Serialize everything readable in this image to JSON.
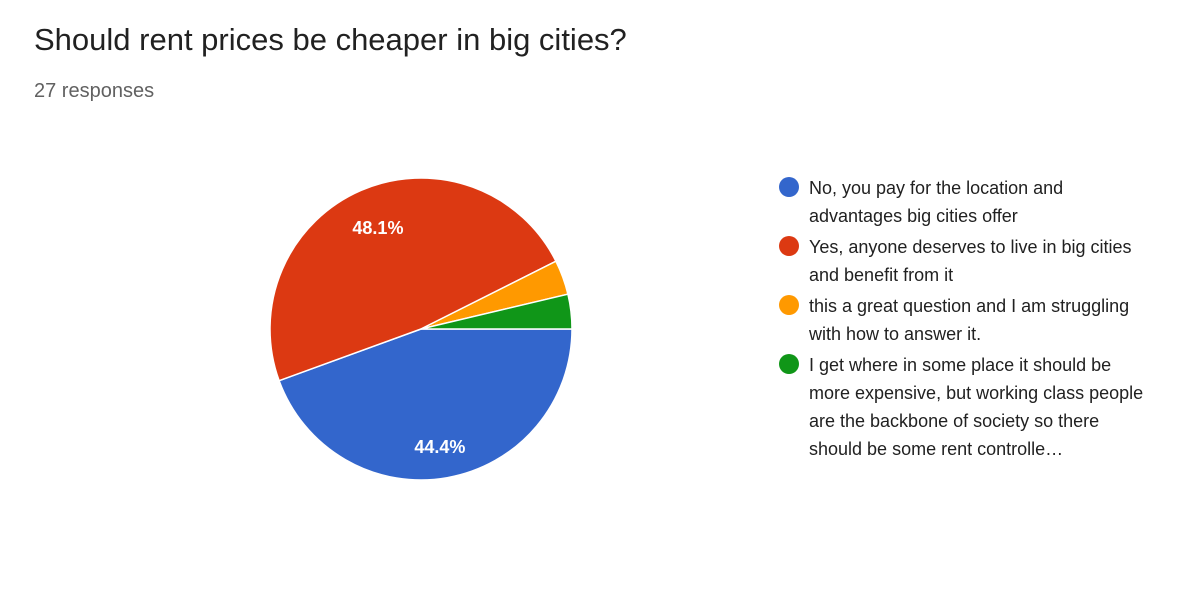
{
  "chart_data": {
    "type": "pie",
    "title": "Should rent prices be cheaper in big cities?",
    "subtitle": "27 responses",
    "categories": [
      "No, you pay for the location and advantages big cities offer",
      "Yes, anyone deserves to live in big cities and benefit from it",
      "this a great question and I am struggling with how to answer it.",
      "I get where in some place it should be more expensive, but working class people are the backbone of society so there should be some rent controlle…"
    ],
    "values": [
      44.4,
      48.1,
      3.7,
      3.7
    ],
    "value_labels": [
      "44.4%",
      "48.1%",
      null,
      null
    ],
    "colors": [
      "#3366cc",
      "#dc3912",
      "#ff9900",
      "#109618"
    ]
  }
}
